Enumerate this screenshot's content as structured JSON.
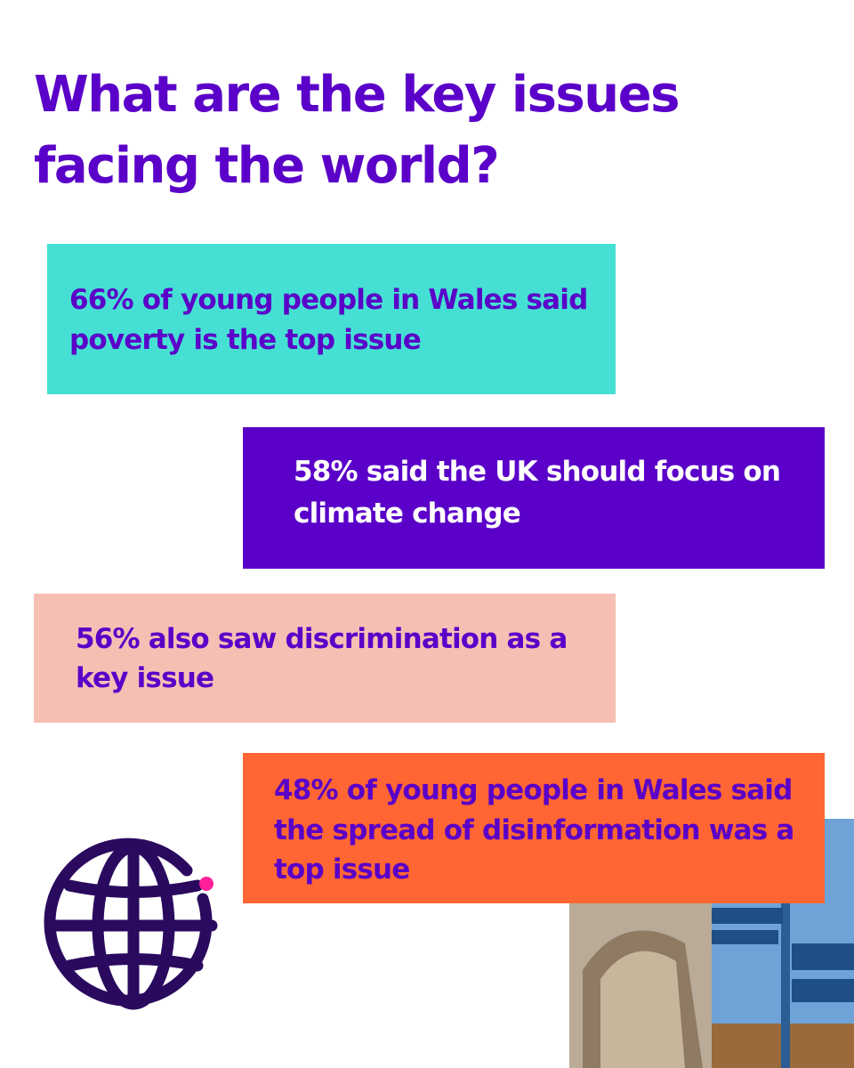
{
  "title": [
    "What are the key issues",
    "facing the world?"
  ],
  "cards": [
    {
      "lines": [
        "66% of young people in Wales said",
        "poverty is the top issue"
      ]
    },
    {
      "lines": [
        "58% said the UK should focus on",
        "climate change"
      ]
    },
    {
      "lines": [
        "56% also saw discrimination as a",
        "key issue"
      ]
    },
    {
      "lines": [
        "48% of young people in Wales said",
        "the spread of disinformation was a",
        "top issue"
      ]
    }
  ]
}
